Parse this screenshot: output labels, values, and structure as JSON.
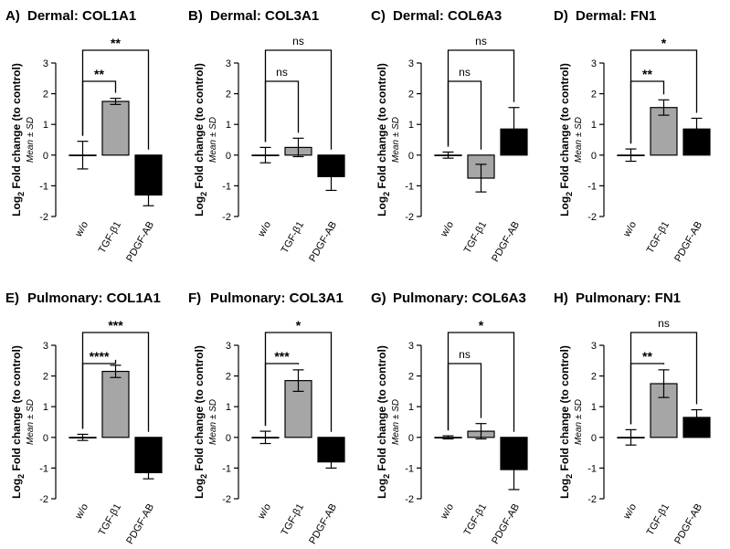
{
  "figure": {
    "y_axis_label_base": "Log",
    "y_axis_label_subscript": "2",
    "y_axis_label_rest": " Fold change (to control)",
    "y_axis_sublabel": "Mean ± SD",
    "series_colors": {
      "w/o": "#ffffff",
      "TGF-β1": "#a6a6a6",
      "PDGF-AB": "#000000"
    }
  },
  "chart_data": [
    {
      "letter": "A)",
      "title": "Dermal: COL1A1",
      "type": "bar",
      "categories": [
        "w/o",
        "TGF-β1",
        "PDGF-AB"
      ],
      "values": [
        0.0,
        1.75,
        -1.3
      ],
      "errors": [
        0.45,
        0.1,
        0.35
      ],
      "ylim": [
        -2,
        3
      ],
      "yticks": [
        "-2",
        "-1",
        "0",
        "1",
        "2",
        "3"
      ],
      "comparisons": [
        {
          "from": 0,
          "to": 1,
          "label": "**",
          "level": 1
        },
        {
          "from": 0,
          "to": 2,
          "label": "**",
          "level": 2
        }
      ]
    },
    {
      "letter": "B)",
      "title": "Dermal: COL3A1",
      "type": "bar",
      "categories": [
        "w/o",
        "TGF-β1",
        "PDGF-AB"
      ],
      "values": [
        0.0,
        0.25,
        -0.7
      ],
      "errors": [
        0.25,
        0.3,
        0.45
      ],
      "ylim": [
        -2,
        3
      ],
      "yticks": [
        "-2",
        "-1",
        "0",
        "1",
        "2",
        "3"
      ],
      "comparisons": [
        {
          "from": 0,
          "to": 1,
          "label": "ns",
          "level": 1
        },
        {
          "from": 0,
          "to": 2,
          "label": "ns",
          "level": 2
        }
      ]
    },
    {
      "letter": "C)",
      "title": "Dermal: COL6A3",
      "type": "bar",
      "categories": [
        "w/o",
        "TGF-β1",
        "PDGF-AB"
      ],
      "values": [
        0.0,
        -0.75,
        0.85
      ],
      "errors": [
        0.1,
        0.45,
        0.7
      ],
      "ylim": [
        -2,
        3
      ],
      "yticks": [
        "-2",
        "-1",
        "0",
        "1",
        "2",
        "3"
      ],
      "comparisons": [
        {
          "from": 0,
          "to": 1,
          "label": "ns",
          "level": 1
        },
        {
          "from": 0,
          "to": 2,
          "label": "ns",
          "level": 2
        }
      ]
    },
    {
      "letter": "D)",
      "title": "Dermal: FN1",
      "type": "bar",
      "categories": [
        "w/o",
        "TGF-β1",
        "PDGF-AB"
      ],
      "values": [
        0.0,
        1.55,
        0.85
      ],
      "errors": [
        0.2,
        0.25,
        0.35
      ],
      "ylim": [
        -2,
        3
      ],
      "yticks": [
        "-2",
        "-1",
        "0",
        "1",
        "2",
        "3"
      ],
      "comparisons": [
        {
          "from": 0,
          "to": 1,
          "label": "**",
          "level": 1
        },
        {
          "from": 0,
          "to": 2,
          "label": "*",
          "level": 2
        }
      ]
    },
    {
      "letter": "E)",
      "title": "Pulmonary: COL1A1",
      "type": "bar",
      "categories": [
        "w/o",
        "TGF-β1",
        "PDGF-AB"
      ],
      "values": [
        0.0,
        2.15,
        -1.15
      ],
      "errors": [
        0.1,
        0.2,
        0.2
      ],
      "ylim": [
        -2,
        3
      ],
      "yticks": [
        "-2",
        "-1",
        "0",
        "1",
        "2",
        "3"
      ],
      "comparisons": [
        {
          "from": 0,
          "to": 1,
          "label": "****",
          "level": 1
        },
        {
          "from": 0,
          "to": 2,
          "label": "***",
          "level": 2
        }
      ]
    },
    {
      "letter": "F)",
      "title": "Pulmonary: COL3A1",
      "type": "bar",
      "categories": [
        "w/o",
        "TGF-β1",
        "PDGF-AB"
      ],
      "values": [
        0.0,
        1.85,
        -0.8
      ],
      "errors": [
        0.2,
        0.35,
        0.2
      ],
      "ylim": [
        -2,
        3
      ],
      "yticks": [
        "-2",
        "-1",
        "0",
        "1",
        "2",
        "3"
      ],
      "comparisons": [
        {
          "from": 0,
          "to": 1,
          "label": "***",
          "level": 1
        },
        {
          "from": 0,
          "to": 2,
          "label": "*",
          "level": 2
        }
      ]
    },
    {
      "letter": "G)",
      "title": "Pulmonary: COL6A3",
      "type": "bar",
      "categories": [
        "w/o",
        "TGF-β1",
        "PDGF-AB"
      ],
      "values": [
        0.0,
        0.2,
        -1.05
      ],
      "errors": [
        0.05,
        0.25,
        0.65
      ],
      "ylim": [
        -2,
        3
      ],
      "yticks": [
        "-2",
        "-1",
        "0",
        "1",
        "2",
        "3"
      ],
      "comparisons": [
        {
          "from": 0,
          "to": 1,
          "label": "ns",
          "level": 1
        },
        {
          "from": 0,
          "to": 2,
          "label": "*",
          "level": 2
        }
      ]
    },
    {
      "letter": "H)",
      "title": "Pulmonary: FN1",
      "type": "bar",
      "categories": [
        "w/o",
        "TGF-β1",
        "PDGF-AB"
      ],
      "values": [
        0.0,
        1.75,
        0.65
      ],
      "errors": [
        0.25,
        0.45,
        0.25
      ],
      "ylim": [
        -2,
        3
      ],
      "yticks": [
        "-2",
        "-1",
        "0",
        "1",
        "2",
        "3"
      ],
      "comparisons": [
        {
          "from": 0,
          "to": 1,
          "label": "**",
          "level": 1
        },
        {
          "from": 0,
          "to": 2,
          "label": "ns",
          "level": 2
        }
      ]
    }
  ]
}
